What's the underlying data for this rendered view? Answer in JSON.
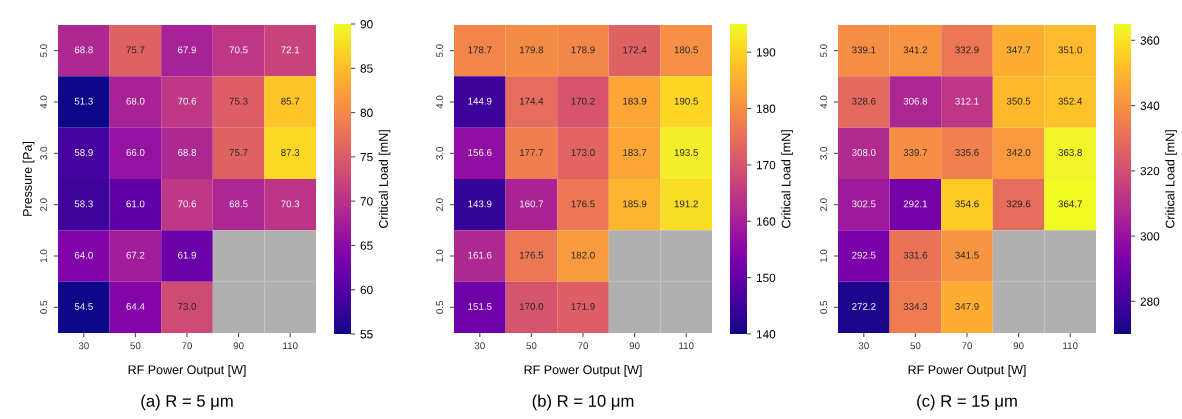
{
  "chart_data": [
    {
      "type": "heatmap",
      "title": "(a) R = 5 μm",
      "xlabel": "RF Power Output [W]",
      "ylabel": "Pressure [Pa]",
      "clabel": "Critical Load [mN]",
      "categories": [
        "30",
        "50",
        "70",
        "90",
        "110"
      ],
      "y_categories": [
        "5.0",
        "4.0",
        "3.0",
        "2.0",
        "1.0",
        "0.5"
      ],
      "cells": [
        [
          68.8,
          75.7,
          67.9,
          70.5,
          72.1
        ],
        [
          51.3,
          68.0,
          70.6,
          75.3,
          85.7
        ],
        [
          58.9,
          66.0,
          68.8,
          75.7,
          87.3
        ],
        [
          58.3,
          61.0,
          70.6,
          68.5,
          70.3
        ],
        [
          64.0,
          67.2,
          61.9,
          null,
          null
        ],
        [
          54.5,
          64.4,
          73.0,
          null,
          null
        ]
      ],
      "cell_labels": [
        [
          "68.8",
          "75.7",
          "67.9",
          "70.5",
          "72.1"
        ],
        [
          "51.3",
          "68.0",
          "70.6",
          "75.3",
          "85.7"
        ],
        [
          "58.9",
          "66.0",
          "68.8",
          "75.7",
          "87.3"
        ],
        [
          "58.3",
          "61.0",
          "70.6",
          "68.5",
          "70.3"
        ],
        [
          "64.0",
          "67.2",
          "61.9",
          null,
          null
        ],
        [
          "54.5",
          "64.4",
          "73.0",
          null,
          null
        ]
      ],
      "clim": [
        55,
        90
      ],
      "cticks": [
        55,
        60,
        65,
        70,
        75,
        80,
        85,
        90
      ],
      "data_labels": true
    },
    {
      "type": "heatmap",
      "title": "(b) R = 10 μm",
      "xlabel": "RF Power Output [W]",
      "clabel": "Critical Load [mN]",
      "categories": [
        "30",
        "50",
        "70",
        "90",
        "110"
      ],
      "y_categories": [
        "5.0",
        "4.0",
        "3.0",
        "2.0",
        "1.0",
        "0.5"
      ],
      "cells": [
        [
          178.7,
          179.8,
          178.9,
          172.4,
          180.5
        ],
        [
          144.9,
          174.4,
          170.2,
          183.9,
          190.5
        ],
        [
          156.6,
          177.7,
          173.0,
          183.7,
          193.5
        ],
        [
          143.9,
          160.7,
          176.5,
          185.9,
          191.2
        ],
        [
          161.6,
          176.5,
          182.0,
          null,
          null
        ],
        [
          151.5,
          170.0,
          171.9,
          null,
          null
        ]
      ],
      "cell_labels": [
        [
          "178.7",
          "179.8",
          "178.9",
          "172.4",
          "180.5"
        ],
        [
          "144.9",
          "174.4",
          "170.2",
          "183.9",
          "190.5"
        ],
        [
          "156.6",
          "177.7",
          "173.0",
          "183.7",
          "193.5"
        ],
        [
          "143.9",
          "160.7",
          "176.5",
          "185.9",
          "191.2"
        ],
        [
          "161.6",
          "176.5",
          "182.0",
          null,
          null
        ],
        [
          "151.5",
          "170.0",
          "171.9",
          null,
          null
        ]
      ],
      "clim": [
        140,
        195
      ],
      "cticks": [
        140,
        150,
        160,
        170,
        180,
        190
      ],
      "data_labels": true
    },
    {
      "type": "heatmap",
      "title": "(c) R = 15 μm",
      "xlabel": "RF Power Output [W]",
      "clabel": "Critical Load [mN]",
      "categories": [
        "30",
        "50",
        "70",
        "90",
        "110"
      ],
      "y_categories": [
        "5.0",
        "4.0",
        "3.0",
        "2.0",
        "1.0",
        "0.5"
      ],
      "cells": [
        [
          339.1,
          341.2,
          332.9,
          347.7,
          351.0
        ],
        [
          328.6,
          306.8,
          312.1,
          350.5,
          352.4
        ],
        [
          308.0,
          339.7,
          335.6,
          342.0,
          363.8
        ],
        [
          302.5,
          292.1,
          354.6,
          329.6,
          364.7
        ],
        [
          292.5,
          331.6,
          341.5,
          null,
          null
        ],
        [
          272.2,
          334.3,
          347.9,
          null,
          null
        ]
      ],
      "cell_labels": [
        [
          "339.1",
          "341.2",
          "332.9",
          "347.7",
          "351.0"
        ],
        [
          "328.6",
          "306.8",
          "312.1",
          "350.5",
          "352.4"
        ],
        [
          "308.0",
          "339.7",
          "335.6",
          "342.0",
          "363.8"
        ],
        [
          "302.5",
          "292.1",
          "354.6",
          "329.6",
          "364.7"
        ],
        [
          "292.5",
          "331.6",
          "341.5",
          null,
          null
        ],
        [
          "272.2",
          "334.3",
          "347.9",
          null,
          null
        ]
      ],
      "clim": [
        270,
        365
      ],
      "cticks": [
        280,
        300,
        320,
        340,
        360
      ],
      "data_labels": true
    }
  ]
}
